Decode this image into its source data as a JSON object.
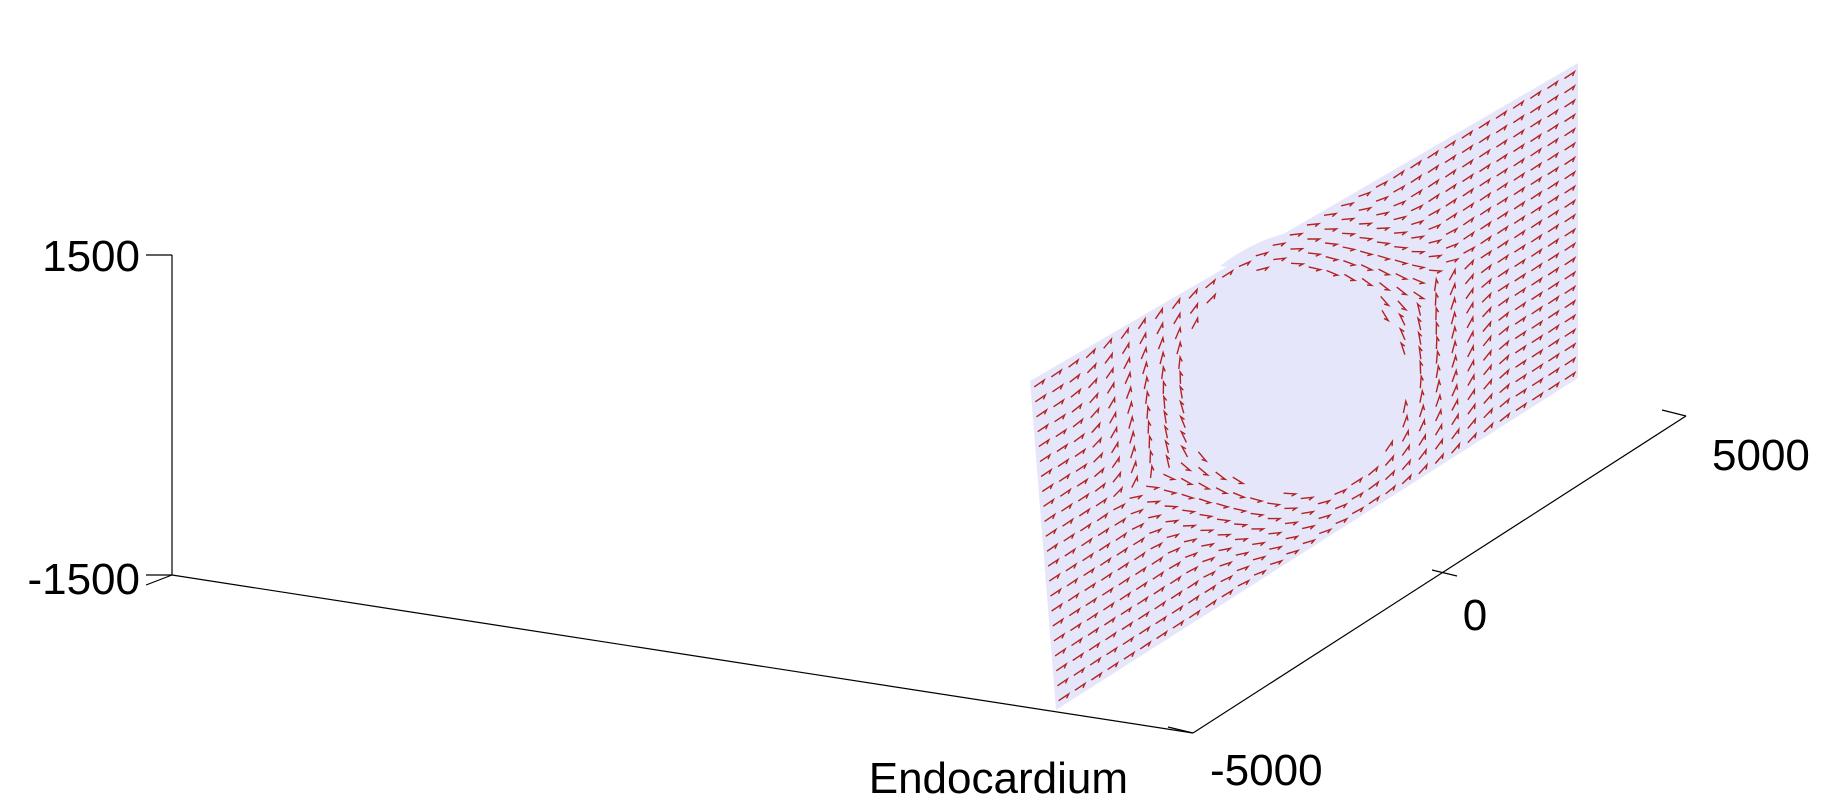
{
  "colors": {
    "background": "#ffffff",
    "axis": "#000000",
    "surface": "#e6e6fa",
    "arrow": "#b22222"
  },
  "axes": {
    "z_ticks": [
      "1500",
      "-1500"
    ],
    "y_ticks": [
      "5000",
      "0",
      "-5000"
    ],
    "x_label": "Endocardium"
  },
  "chart_data": {
    "type": "quiver3d",
    "title": "",
    "xlabel": "Endocardium",
    "ylabel": "",
    "zlabel": "",
    "zlim": [
      -1500,
      1500
    ],
    "ylim": [
      -5000,
      5000
    ],
    "z_ticks": [
      -1500,
      1500
    ],
    "y_ticks": [
      -5000,
      0,
      5000
    ],
    "grid": false,
    "surface": "plane with central spherical bump",
    "vectors": "fiber-direction field, mostly diagonal, deflected around the bump"
  }
}
